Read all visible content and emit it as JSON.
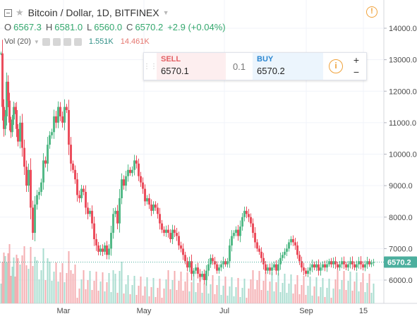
{
  "header": {
    "title": "Bitcoin / Dollar, 1D, BITFINEX",
    "ohlc": {
      "o_label": "O",
      "o": "6567.3",
      "h_label": "H",
      "h": "6581.0",
      "l_label": "L",
      "l": "6560.0",
      "c_label": "C",
      "c": "6570.2",
      "change": "+2.9 (+0.04%)"
    },
    "volume": {
      "label": "Vol (20)",
      "value_1": "1.551K",
      "value_2": "14.461K"
    },
    "warning_icon": "!"
  },
  "trade_panel": {
    "sell_label": "SELL",
    "sell_price": "6570.1",
    "quantity": "0.1",
    "buy_label": "BUY",
    "buy_price": "6570.2",
    "info_icon": "i",
    "plus": "+",
    "minus": "−"
  },
  "chart_data": {
    "type": "candlestick",
    "symbol": "Bitcoin / Dollar",
    "interval": "1D",
    "exchange": "BITFINEX",
    "title": "Bitcoin / Dollar, 1D, BITFINEX",
    "ylim": [
      5300,
      14500
    ],
    "y_ticks": [
      "6000.0",
      "7000.0",
      "8000.0",
      "9000.0",
      "10000.0",
      "11000.0",
      "12000.0",
      "13000.0",
      "14000.0"
    ],
    "x_ticks": [
      "Mar",
      "May",
      "Jul",
      "Sep",
      "15"
    ],
    "last_price": "6570.2",
    "colors": {
      "up": "#53b987",
      "down": "#eb4d5c",
      "vol_up": "#a9dccf",
      "vol_down": "#f4aeb1",
      "price_tag": "#4caf9e"
    },
    "close_path": [
      [
        0,
        13200
      ],
      [
        2,
        11500
      ],
      [
        4,
        10800
      ],
      [
        6,
        11200
      ],
      [
        8,
        12300
      ],
      [
        10,
        11700
      ],
      [
        12,
        11000
      ],
      [
        14,
        10700
      ],
      [
        16,
        11100
      ],
      [
        18,
        11500
      ],
      [
        20,
        11400
      ],
      [
        22,
        10800
      ],
      [
        24,
        10400
      ],
      [
        27,
        11000
      ],
      [
        30,
        10200
      ],
      [
        33,
        9600
      ],
      [
        36,
        9000
      ],
      [
        39,
        9500
      ],
      [
        42,
        8300
      ],
      [
        45,
        7500
      ],
      [
        48,
        8400
      ],
      [
        51,
        8700
      ],
      [
        54,
        8800
      ],
      [
        57,
        9100
      ],
      [
        60,
        9800
      ],
      [
        63,
        9700
      ],
      [
        66,
        10300
      ],
      [
        69,
        10600
      ],
      [
        72,
        10700
      ],
      [
        75,
        11200
      ],
      [
        78,
        11000
      ],
      [
        81,
        11500
      ],
      [
        84,
        11200
      ],
      [
        87,
        11000
      ],
      [
        90,
        11500
      ],
      [
        93,
        11400
      ],
      [
        96,
        10300
      ],
      [
        99,
        9700
      ],
      [
        102,
        9500
      ],
      [
        105,
        9200
      ],
      [
        108,
        8700
      ],
      [
        111,
        8600
      ],
      [
        114,
        8900
      ],
      [
        117,
        8800
      ],
      [
        120,
        8300
      ],
      [
        123,
        8100
      ],
      [
        126,
        8200
      ],
      [
        129,
        7800
      ],
      [
        132,
        7300
      ],
      [
        135,
        7100
      ],
      [
        138,
        6900
      ],
      [
        141,
        7000
      ],
      [
        144,
        6900
      ],
      [
        147,
        7100
      ],
      [
        150,
        6800
      ],
      [
        153,
        7000
      ],
      [
        156,
        7500
      ],
      [
        159,
        8100
      ],
      [
        162,
        8200
      ],
      [
        165,
        7800
      ],
      [
        168,
        8600
      ],
      [
        171,
        9200
      ],
      [
        174,
        9000
      ],
      [
        177,
        9300
      ],
      [
        180,
        9500
      ],
      [
        183,
        9400
      ],
      [
        186,
        9500
      ],
      [
        189,
        9800
      ],
      [
        192,
        9700
      ],
      [
        195,
        9300
      ],
      [
        198,
        9100
      ],
      [
        201,
        8900
      ],
      [
        204,
        8500
      ],
      [
        207,
        8600
      ],
      [
        210,
        8400
      ],
      [
        213,
        8200
      ],
      [
        216,
        8400
      ],
      [
        219,
        8300
      ],
      [
        222,
        8100
      ],
      [
        225,
        7800
      ],
      [
        228,
        7600
      ],
      [
        231,
        7500
      ],
      [
        234,
        7600
      ],
      [
        237,
        7500
      ],
      [
        240,
        7300
      ],
      [
        243,
        7600
      ],
      [
        246,
        7500
      ],
      [
        249,
        7400
      ],
      [
        252,
        7100
      ],
      [
        255,
        7000
      ],
      [
        258,
        6800
      ],
      [
        261,
        6600
      ],
      [
        264,
        6400
      ],
      [
        267,
        6600
      ],
      [
        270,
        6200
      ],
      [
        273,
        6300
      ],
      [
        276,
        6400
      ],
      [
        279,
        6200
      ],
      [
        282,
        6100
      ],
      [
        285,
        6200
      ],
      [
        288,
        6000
      ],
      [
        291,
        6300
      ],
      [
        294,
        6500
      ],
      [
        297,
        6700
      ],
      [
        300,
        6600
      ],
      [
        303,
        6500
      ],
      [
        306,
        6300
      ],
      [
        309,
        6400
      ],
      [
        312,
        6500
      ],
      [
        315,
        6600
      ],
      [
        318,
        6500
      ],
      [
        321,
        6600
      ],
      [
        324,
        7100
      ],
      [
        327,
        7400
      ],
      [
        330,
        7500
      ],
      [
        333,
        7600
      ],
      [
        336,
        7400
      ],
      [
        339,
        7700
      ],
      [
        342,
        8000
      ],
      [
        345,
        8200
      ],
      [
        348,
        8100
      ],
      [
        351,
        8000
      ],
      [
        354,
        7800
      ],
      [
        357,
        7500
      ],
      [
        360,
        7200
      ],
      [
        363,
        7000
      ],
      [
        366,
        6900
      ],
      [
        369,
        6700
      ],
      [
        372,
        6500
      ],
      [
        375,
        6300
      ],
      [
        378,
        6400
      ],
      [
        381,
        6300
      ],
      [
        384,
        6400
      ],
      [
        387,
        6500
      ],
      [
        390,
        6300
      ],
      [
        393,
        6500
      ],
      [
        396,
        6700
      ],
      [
        399,
        6800
      ],
      [
        402,
        6900
      ],
      [
        405,
        7000
      ],
      [
        408,
        7200
      ],
      [
        411,
        7300
      ],
      [
        414,
        7200
      ],
      [
        417,
        7100
      ],
      [
        420,
        6800
      ],
      [
        423,
        6600
      ],
      [
        426,
        6400
      ],
      [
        429,
        6300
      ],
      [
        432,
        6200
      ],
      [
        435,
        6300
      ],
      [
        438,
        6400
      ],
      [
        441,
        6500
      ],
      [
        444,
        6400
      ],
      [
        447,
        6500
      ],
      [
        450,
        6300
      ],
      [
        453,
        6400
      ],
      [
        456,
        6500
      ],
      [
        459,
        6400
      ],
      [
        462,
        6500
      ],
      [
        465,
        6600
      ],
      [
        468,
        6500
      ],
      [
        471,
        6600
      ],
      [
        474,
        6500
      ],
      [
        477,
        6400
      ],
      [
        480,
        6500
      ],
      [
        483,
        6600
      ],
      [
        486,
        6500
      ],
      [
        489,
        6400
      ],
      [
        492,
        6500
      ],
      [
        495,
        6600
      ],
      [
        498,
        6500
      ],
      [
        501,
        6400
      ],
      [
        504,
        6500
      ],
      [
        507,
        6600
      ],
      [
        510,
        6500
      ],
      [
        513,
        6400
      ],
      [
        516,
        6500
      ],
      [
        519,
        6600
      ],
      [
        522,
        6500
      ],
      [
        525,
        6550
      ],
      [
        528,
        6570
      ]
    ]
  }
}
